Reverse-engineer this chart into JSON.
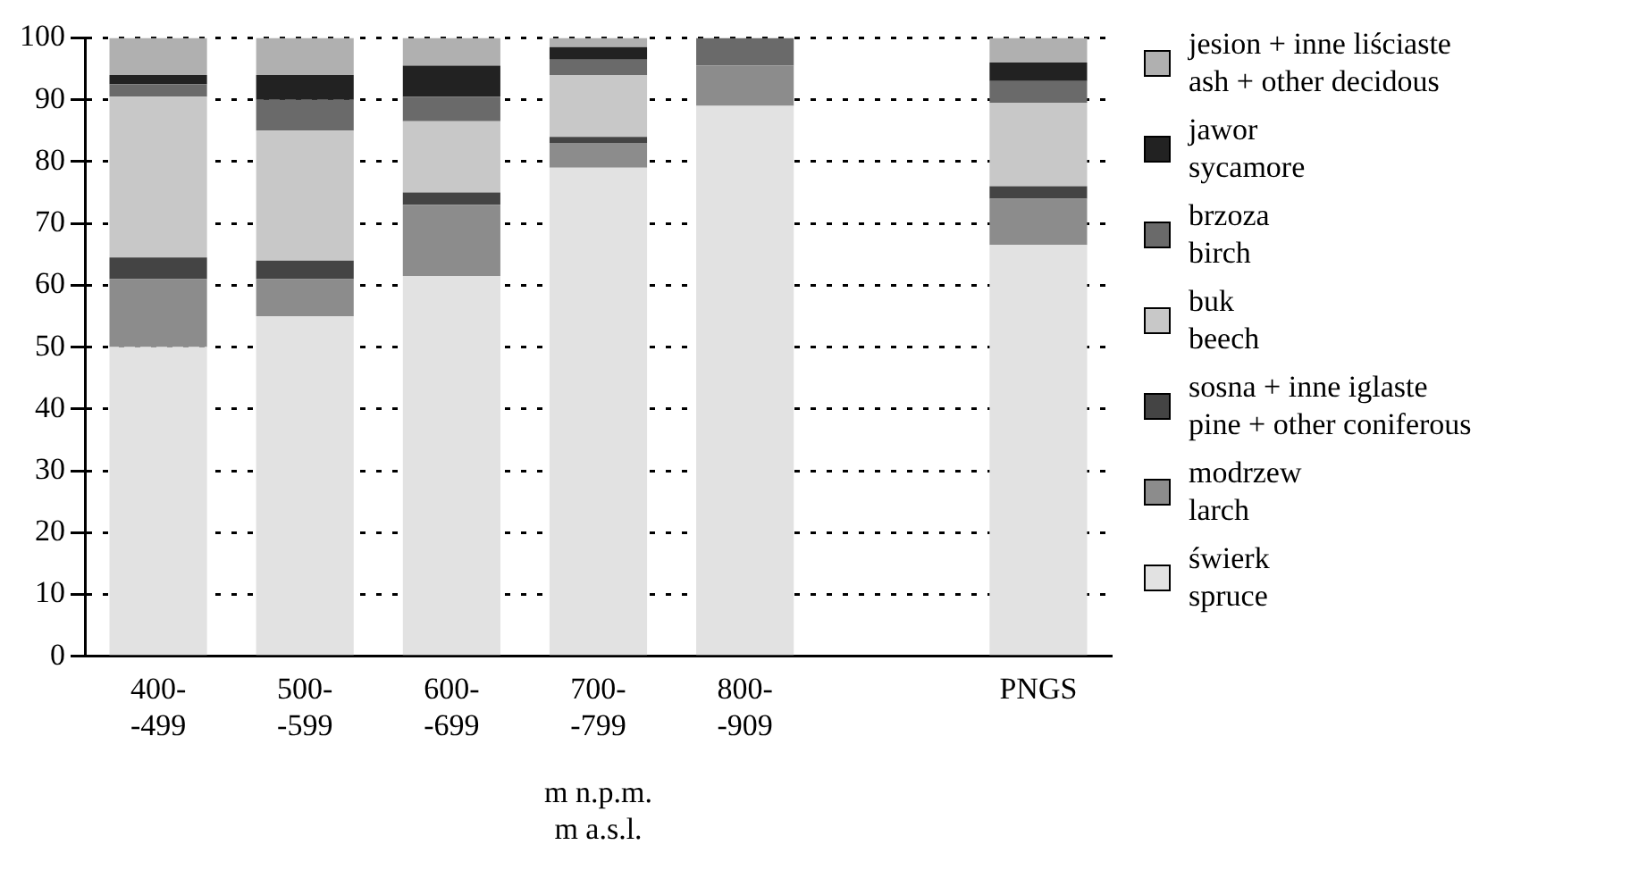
{
  "chart_data": {
    "type": "bar",
    "stacked": true,
    "categories": [
      "400-\n-499",
      "500-\n-599",
      "600-\n-699",
      "700-\n-799",
      "800-\n-909",
      null,
      "PNGS"
    ],
    "xlabel": "m n.p.m.\nm a.s.l.",
    "ylim": [
      0,
      100
    ],
    "yticks": [
      0,
      10,
      20,
      30,
      40,
      50,
      60,
      70,
      80,
      90,
      100
    ],
    "grid": "y",
    "legend": "right",
    "series": [
      {
        "name": "świerk\nspruce",
        "color": "#e2e2e2",
        "values": [
          50,
          55,
          61.5,
          79,
          89,
          null,
          66.5
        ]
      },
      {
        "name": "modrzew\nlarch",
        "color": "#8c8c8c",
        "values": [
          11,
          6,
          11.5,
          4,
          6.5,
          null,
          7.5
        ]
      },
      {
        "name": "sosna + inne iglaste\npine + other coniferous",
        "color": "#444444",
        "values": [
          3.5,
          3,
          2,
          1,
          0,
          null,
          2
        ]
      },
      {
        "name": "buk\nbeech",
        "color": "#c8c8c8",
        "values": [
          26,
          21,
          11.5,
          10,
          0,
          null,
          13.5
        ]
      },
      {
        "name": "brzoza\nbirch",
        "color": "#6a6a6a",
        "values": [
          2,
          5,
          4,
          2.5,
          4.5,
          null,
          3.5
        ]
      },
      {
        "name": "jawor\nsycamore",
        "color": "#222222",
        "values": [
          1.5,
          4,
          5,
          2,
          0,
          null,
          3
        ]
      },
      {
        "name": "jesion + inne liściaste\nash + other decidous",
        "color": "#b0b0b0",
        "values": [
          6,
          6,
          4.5,
          1.5,
          0,
          null,
          4
        ]
      }
    ]
  }
}
